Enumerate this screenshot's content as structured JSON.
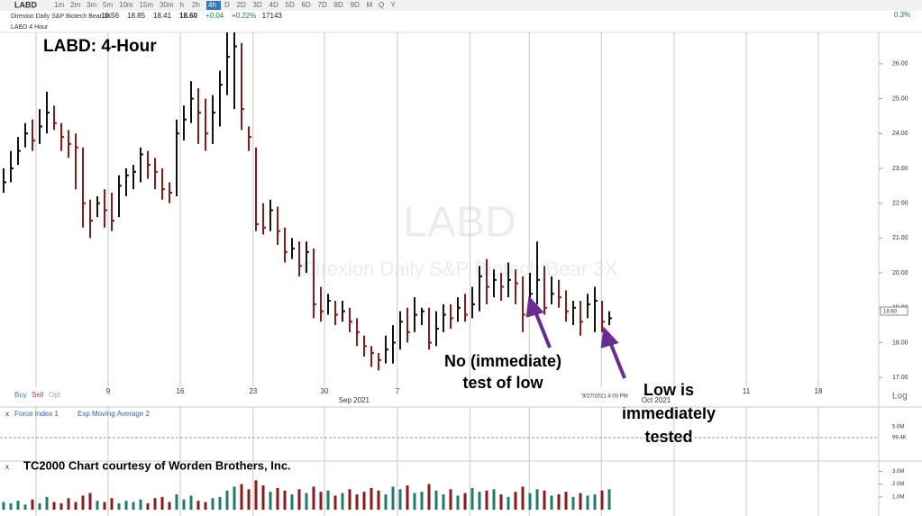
{
  "ui": {
    "symbol": "LABD",
    "timeframes": [
      "1m",
      "2m",
      "3m",
      "5m",
      "10m",
      "15m",
      "30m",
      "h",
      "2h",
      "4h",
      "D",
      "2D",
      "3D",
      "4D",
      "5D",
      "6D",
      "7D",
      "8D",
      "9D",
      "M",
      "Q",
      "Y"
    ],
    "active_timeframe": 9,
    "quote_name": "Direxion Daily S&P Biotech Bear 3X",
    "quote": [
      "18.56",
      "18.85",
      "18.41",
      "18.60",
      "+0.04",
      "+0.22%",
      "17143"
    ],
    "chart_label": "LABD 4 Hour",
    "top_right": "0.3%",
    "watermark_symbol": "LABD",
    "watermark_name": "Direxion Daily S&P Biotech Bear 3X",
    "headline": "LABD:  4-Hour",
    "note_left": [
      "No (immediate)",
      "test of low"
    ],
    "note_right": [
      "Low is",
      "immediately",
      "tested"
    ],
    "cursor_time": "9/27/2021 4:00 PM",
    "last_price": "18.60",
    "trade_buttons": [
      "Buy",
      "Sell",
      "Opt"
    ],
    "scale_button": "Log",
    "indicator_1": "Force Index 1",
    "indicator_2": "Exp Moving Average 2",
    "indicator_axis": "5.0M",
    "indicator_value": "99.4K",
    "credit": "TC2000 Chart courtesy of Worden Brothers, Inc."
  },
  "chart_data": [
    {
      "type": "ohlc",
      "up_color": "#111111",
      "down_color": "#8b1a1a",
      "high": [
        23.0,
        23.5,
        23.9,
        24.3,
        24.4,
        24.7,
        25.2,
        24.8,
        24.3,
        24.1,
        24.0,
        23.6,
        22.1,
        22.2,
        22.4,
        22.3,
        22.8,
        23.0,
        23.1,
        23.6,
        23.5,
        23.3,
        23.0,
        22.6,
        24.4,
        24.8,
        25.5,
        25.3,
        25.0,
        25.1,
        25.8,
        26.9,
        26.9,
        26.6,
        24.2,
        23.6,
        22.0,
        22.1,
        21.9,
        21.3,
        21.0,
        20.9,
        20.9,
        20.7,
        19.6,
        19.4,
        19.2,
        19.2,
        19.0,
        18.7,
        18.2,
        17.9,
        17.7,
        18.2,
        18.5,
        18.9,
        19.0,
        19.3,
        19.0,
        19.0,
        18.9,
        19.1,
        19.1,
        19.3,
        19.4,
        19.6,
        20.2,
        20.4,
        20.1,
        20.0,
        20.3,
        20.1,
        19.9,
        20.0,
        20.9,
        20.2,
        19.9,
        19.8,
        19.5,
        19.2,
        19.2,
        19.4,
        19.6,
        19.2,
        18.9
      ],
      "low": [
        22.3,
        22.6,
        23.1,
        23.6,
        23.5,
        23.7,
        24.0,
        24.1,
        23.5,
        23.3,
        22.4,
        21.3,
        21.0,
        21.6,
        21.3,
        21.2,
        21.6,
        22.2,
        22.4,
        22.6,
        22.7,
        22.4,
        22.1,
        22.0,
        22.2,
        23.8,
        24.3,
        23.7,
        23.5,
        23.7,
        24.2,
        25.1,
        24.7,
        24.1,
        23.5,
        21.2,
        21.1,
        21.2,
        20.8,
        20.3,
        20.4,
        19.9,
        20.0,
        18.7,
        18.6,
        18.8,
        18.5,
        18.6,
        18.3,
        17.9,
        17.6,
        17.3,
        17.2,
        17.4,
        17.4,
        17.8,
        18.0,
        18.3,
        18.5,
        17.8,
        17.9,
        18.3,
        18.4,
        18.6,
        18.6,
        18.7,
        18.9,
        19.1,
        19.3,
        19.2,
        19.3,
        19.1,
        18.3,
        18.9,
        19.1,
        18.8,
        19.1,
        19.0,
        18.6,
        18.5,
        18.2,
        18.7,
        18.3,
        18.3,
        18.5
      ],
      "close": [
        22.6,
        23.0,
        23.5,
        24.0,
        23.8,
        24.2,
        24.6,
        24.3,
        23.9,
        23.7,
        23.6,
        22.0,
        21.5,
        22.0,
        21.8,
        21.5,
        22.5,
        22.8,
        22.9,
        23.4,
        23.1,
        22.9,
        22.4,
        22.3,
        24.0,
        24.4,
        25.0,
        24.6,
        24.0,
        24.6,
        25.4,
        26.2,
        26.5,
        24.7,
        23.9,
        21.4,
        21.3,
        21.8,
        21.2,
        20.6,
        20.7,
        20.2,
        20.6,
        19.1,
        18.9,
        19.2,
        18.8,
        18.9,
        18.6,
        18.3,
        17.9,
        17.7,
        17.5,
        17.8,
        18.0,
        18.6,
        18.3,
        18.8,
        18.9,
        18.0,
        18.4,
        18.8,
        18.7,
        19.0,
        18.8,
        19.1,
        19.9,
        19.6,
        19.8,
        19.6,
        19.8,
        19.7,
        18.8,
        19.4,
        19.8,
        19.0,
        19.4,
        19.3,
        18.9,
        19.0,
        18.6,
        19.1,
        19.2,
        18.6,
        18.7
      ],
      "xlim": [
        -0.5,
        121.4
      ],
      "xticks": [
        {
          "value": 14.5,
          "label": "9"
        },
        {
          "value": 24.5,
          "label": "16"
        },
        {
          "value": 34.6,
          "label": "23"
        },
        {
          "value": 44.5,
          "label": "30"
        },
        {
          "value": 54.6,
          "label": "7"
        },
        {
          "value": 103,
          "label": "11"
        },
        {
          "value": 113,
          "label": "18"
        }
      ],
      "month_ticks": [
        {
          "value": 48.6,
          "label": "Sep 2021"
        },
        {
          "value": 90.5,
          "label": "Oct 2021"
        }
      ],
      "xgrid": [
        4.5,
        14.5,
        24.5,
        34.6,
        44.5,
        54.6,
        64.7,
        72.9,
        82.9,
        93,
        103,
        113
      ],
      "ylim": [
        16.72,
        26.9
      ],
      "yticks": [
        {
          "value": 17,
          "label": "17.00"
        },
        {
          "value": 18,
          "label": "18.00"
        },
        {
          "value": 19,
          "label": "19.00"
        },
        {
          "value": 20,
          "label": "20.00"
        },
        {
          "value": 21,
          "label": "21.00"
        },
        {
          "value": 22,
          "label": "22.00"
        },
        {
          "value": 23,
          "label": "23.00"
        },
        {
          "value": 24,
          "label": "24.00"
        },
        {
          "value": 25,
          "label": "25.00"
        },
        {
          "value": 26,
          "label": "26.00"
        }
      ]
    },
    {
      "type": "volume",
      "up_color": "#1f7a6d",
      "down_color": "#8b1a1a",
      "values": [
        0.6,
        0.5,
        0.7,
        0.4,
        0.8,
        0.5,
        1.0,
        0.6,
        0.5,
        0.9,
        0.6,
        1.1,
        1.3,
        0.7,
        0.6,
        0.9,
        0.5,
        0.7,
        0.6,
        0.8,
        0.5,
        0.9,
        1.0,
        0.6,
        1.2,
        0.8,
        1.1,
        0.7,
        0.6,
        0.9,
        1.0,
        1.5,
        1.8,
        2.0,
        1.6,
        2.3,
        1.9,
        1.4,
        1.7,
        1.5,
        1.2,
        1.6,
        1.3,
        1.8,
        1.4,
        1.5,
        1.1,
        1.3,
        1.6,
        1.2,
        1.4,
        1.7,
        1.5,
        1.2,
        1.8,
        1.6,
        1.9,
        1.3,
        1.4,
        2.0,
        1.5,
        1.2,
        1.6,
        1.1,
        1.3,
        1.7,
        1.4,
        1.5,
        1.6,
        1.2,
        1.0,
        1.4,
        1.8,
        1.3,
        1.6,
        1.5,
        1.1,
        1.2,
        1.4,
        1.0,
        1.3,
        1.1,
        1.2,
        1.5,
        1.6
      ],
      "ylim": [
        0,
        3.1
      ],
      "yticks": [
        {
          "value": 1,
          "label": "1.0M"
        },
        {
          "value": 2,
          "label": "2.0M"
        },
        {
          "value": 3,
          "label": "3.0M"
        }
      ]
    }
  ]
}
